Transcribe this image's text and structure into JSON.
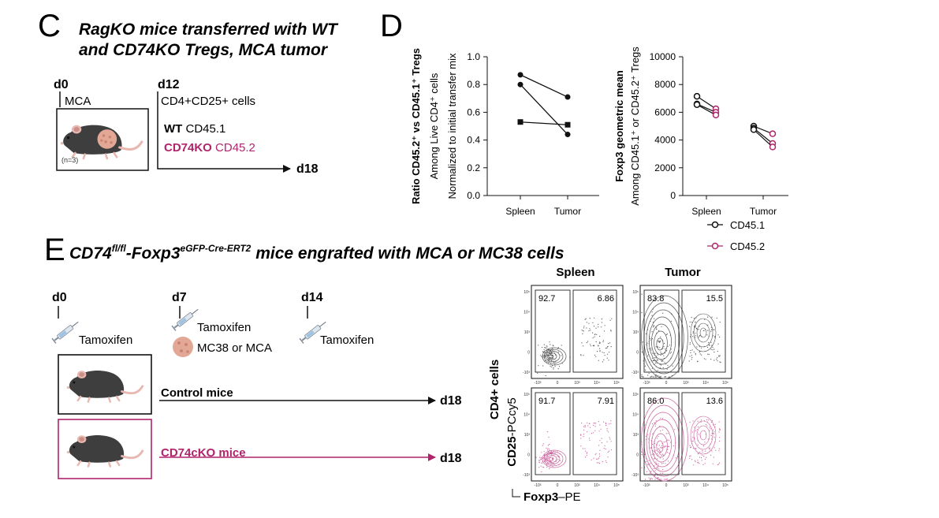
{
  "colors": {
    "black": "#111111",
    "magenta": "#b0246c",
    "mouse_body": "#3e3e3e",
    "mouse_pink": "#e8b8b0",
    "tumor": "#e3a895"
  },
  "panel_c": {
    "letter": "C",
    "title_line1": "RagKO mice transferred with WT",
    "title_line2": "and CD74KO Tregs, MCA tumor",
    "day0": "d0",
    "day12": "d12",
    "day18": "d18",
    "tumor_label": "MCA",
    "n_label": "(n=3)",
    "cells_label": "CD4+CD25+ cells",
    "wt_bold": "WT",
    "wt_rest": "CD45.1",
    "ko_bold": "CD74KO",
    "ko_rest": "CD45.2",
    "icons": [
      "mouse-icon",
      "tumor-icon",
      "arrow-icon"
    ]
  },
  "panel_d": {
    "letter": "D"
  },
  "chart_data": [
    {
      "type": "line",
      "categories": [
        "Spleen",
        "Tumor"
      ],
      "ylabel_bold": "Ratio CD45.2⁺ vs CD45.1⁺ Tregs",
      "ylabel_line2": "Among Live CD4⁺ cells",
      "ylabel_line3": "Normalized to initial transfer mix",
      "ylim": [
        0,
        1.0
      ],
      "yticks": [
        "0.0",
        "0.2",
        "0.4",
        "0.6",
        "0.8",
        "1.0"
      ],
      "series": [
        {
          "marker": "circle",
          "values": [
            0.87,
            0.71
          ]
        },
        {
          "marker": "circle",
          "values": [
            0.8,
            0.44
          ]
        },
        {
          "marker": "square",
          "values": [
            0.53,
            0.51
          ]
        }
      ]
    },
    {
      "type": "line",
      "categories": [
        "Spleen",
        "Tumor"
      ],
      "ylabel_bold": "Foxp3 geometric mean",
      "ylabel_line2": "Among CD45.1⁺ or CD45.2⁺ Tregs",
      "ylim": [
        0,
        10000
      ],
      "yticks": [
        "0",
        "2000",
        "4000",
        "6000",
        "8000",
        "10000"
      ],
      "legend": [
        {
          "name": "CD45.1",
          "color": "#111111"
        },
        {
          "name": "CD45.2",
          "color": "#b0246c"
        }
      ],
      "pairs": [
        {
          "group": "Spleen",
          "cd451": 7150,
          "cd452": 6250
        },
        {
          "group": "Spleen",
          "cd451": 6600,
          "cd452": 6000
        },
        {
          "group": "Spleen",
          "cd451": 6550,
          "cd452": 5800
        },
        {
          "group": "Tumor",
          "cd451": 5000,
          "cd452": 4450
        },
        {
          "group": "Tumor",
          "cd451": 4850,
          "cd452": 3750
        },
        {
          "group": "Tumor",
          "cd451": 4750,
          "cd452": 3500
        }
      ]
    }
  ],
  "panel_e": {
    "letter": "E",
    "title_a": "CD74",
    "title_a_sup": "fl/fl",
    "title_b": "-Foxp3",
    "title_b_sup": "eGFP-Cre-ERT2",
    "title_c": " mice engrafted with MCA or MC38 cells",
    "day0": "d0",
    "day7": "d7",
    "day14": "d14",
    "day18a": "d18",
    "day18b": "d18",
    "tamoxifen_0": "Tamoxifen",
    "tamoxifen_7": "Tamoxifen",
    "tumor_cells": "MC38 or MCA",
    "tamoxifen_14": "Tamoxifen",
    "control_label": "Control mice",
    "ko_label": "CD74cKO mice"
  },
  "flow": {
    "col_spleen": "Spleen",
    "col_tumor": "Tumor",
    "row_label": "CD4+ cells",
    "yaxis_bold": "CD25",
    "yaxis_rest": "-PCcy5",
    "xaxis_bold": "Foxp3",
    "xaxis_rest": "–PE",
    "y_ticks": [
      "10⁵",
      "10⁴",
      "10³",
      "0",
      "-10³"
    ],
    "x_ticks": [
      "-10³",
      "0",
      "10³",
      "10⁴",
      "10⁵"
    ],
    "plots": [
      {
        "row": "control",
        "tissue": "Spleen",
        "left_pct": "92.7",
        "right_pct": "6.86"
      },
      {
        "row": "control",
        "tissue": "Tumor",
        "left_pct": "83.8",
        "right_pct": "15.5"
      },
      {
        "row": "cko",
        "tissue": "Spleen",
        "left_pct": "91.7",
        "right_pct": "7.91"
      },
      {
        "row": "cko",
        "tissue": "Tumor",
        "left_pct": "86.0",
        "right_pct": "13.6"
      }
    ]
  }
}
